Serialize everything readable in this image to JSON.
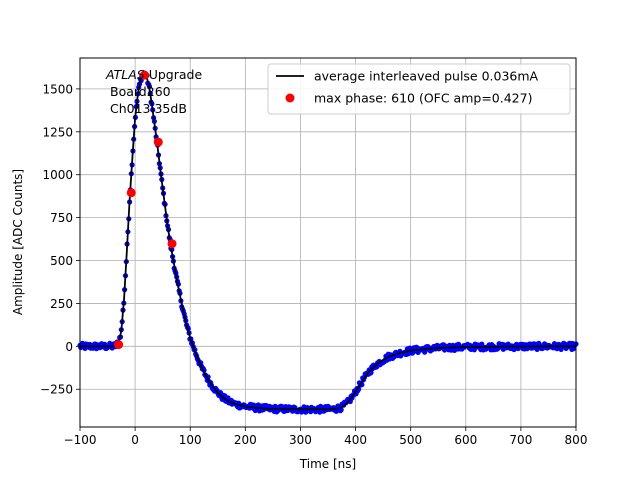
{
  "chart_data": {
    "type": "scatter",
    "title": "",
    "xlabel": "Time [ns]",
    "ylabel": "Amplitude [ADC Counts]",
    "xlim": [
      -100,
      800
    ],
    "ylim": [
      -470,
      1680
    ],
    "xticks": [
      -100,
      0,
      100,
      200,
      300,
      400,
      500,
      600,
      700,
      800
    ],
    "yticks": [
      -250,
      0,
      250,
      500,
      750,
      1000,
      1250,
      1500
    ],
    "xtick_labels": [
      "−100",
      "0",
      "100",
      "200",
      "300",
      "400",
      "500",
      "600",
      "700",
      "800"
    ],
    "ytick_labels": [
      "−250",
      "0",
      "250",
      "500",
      "750",
      "1000",
      "1250",
      "1500"
    ],
    "grid": true,
    "legend_position": "top-right",
    "annotation": {
      "italic": "ATLAS",
      "rest": " Upgrade",
      "line2": "Board260",
      "line3": "Ch013 35dB"
    },
    "series": [
      {
        "name": "average interleaved pulse 0.036mA",
        "kind": "line",
        "color": "#000000",
        "x": [
          -100,
          -40,
          -35,
          -30,
          -25,
          -20,
          -15,
          -10,
          -5,
          0,
          5,
          10,
          15,
          20,
          25,
          30,
          35,
          40,
          45,
          50,
          55,
          60,
          65,
          70,
          75,
          80,
          85,
          90,
          95,
          100,
          110,
          120,
          130,
          140,
          150,
          160,
          170,
          180,
          200,
          220,
          240,
          260,
          280,
          300,
          320,
          340,
          360,
          375,
          385,
          395,
          405,
          415,
          425,
          440,
          460,
          480,
          500,
          530,
          560,
          600,
          650,
          700,
          750,
          800
        ],
        "y": [
          0,
          0,
          5,
          20,
          90,
          280,
          550,
          850,
          1100,
          1330,
          1470,
          1560,
          1590,
          1580,
          1520,
          1420,
          1300,
          1180,
          1050,
          920,
          800,
          680,
          580,
          490,
          400,
          320,
          240,
          170,
          105,
          50,
          -40,
          -120,
          -180,
          -230,
          -270,
          -300,
          -320,
          -335,
          -350,
          -358,
          -363,
          -365,
          -366,
          -367,
          -367,
          -367,
          -366,
          -355,
          -330,
          -290,
          -240,
          -190,
          -145,
          -100,
          -60,
          -40,
          -25,
          -15,
          -8,
          -4,
          -2,
          -1,
          0,
          0
        ]
      },
      {
        "name": "max phase: 610 (OFC amp=0.427)",
        "kind": "scatter",
        "color": "#ff0000",
        "x": [
          -30,
          -7,
          17,
          42,
          67
        ],
        "y": [
          10,
          895,
          1580,
          1190,
          598
        ]
      }
    ],
    "scatter_color": "#0000ff",
    "scatter_jitter": 18
  }
}
